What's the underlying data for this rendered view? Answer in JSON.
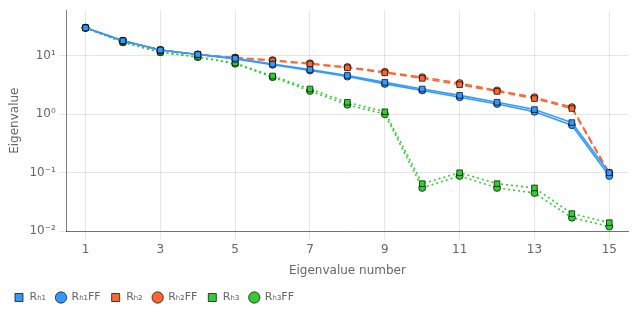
{
  "chart_data": {
    "type": "line",
    "xlabel": "Eigenvalue number",
    "ylabel": "Eigenvalue",
    "x": [
      1,
      2,
      3,
      4,
      5,
      6,
      7,
      8,
      9,
      10,
      11,
      12,
      13,
      14,
      15
    ],
    "series": [
      {
        "name": "Rₕ₁",
        "color": "#3399FF",
        "marker": "square",
        "line_style": "solid",
        "values": [
          30,
          18,
          12.5,
          10.5,
          9.0,
          7.2,
          5.8,
          4.6,
          3.5,
          2.7,
          2.1,
          1.6,
          1.2,
          0.72,
          0.1
        ]
      },
      {
        "name": "Rₕ₁FF",
        "color": "#3399FF",
        "marker": "circle",
        "line_style": "solid",
        "values": [
          30,
          18,
          12.5,
          10.5,
          8.8,
          7.0,
          5.6,
          4.4,
          3.3,
          2.55,
          1.95,
          1.5,
          1.1,
          0.65,
          0.088
        ]
      },
      {
        "name": "Rₕ₂",
        "color": "#FF6633",
        "marker": "square",
        "line_style": "dashed",
        "values": [
          30,
          18,
          12.5,
          10.5,
          9.2,
          8.2,
          7.2,
          6.2,
          5.1,
          4.1,
          3.2,
          2.45,
          1.85,
          1.25,
          0.095
        ]
      },
      {
        "name": "Rₕ₂FF",
        "color": "#FF6633",
        "marker": "circle",
        "line_style": "dashed",
        "values": [
          30,
          18,
          12.5,
          10.5,
          9.3,
          8.4,
          7.4,
          6.4,
          5.3,
          4.3,
          3.4,
          2.55,
          1.95,
          1.32,
          0.1
        ]
      },
      {
        "name": "Rₕ₃",
        "color": "#33CC33",
        "marker": "square",
        "line_style": "dotted",
        "values": [
          30,
          17,
          11.5,
          9.5,
          7.5,
          4.5,
          2.7,
          1.6,
          1.1,
          0.065,
          0.1,
          0.065,
          0.055,
          0.02,
          0.014
        ]
      },
      {
        "name": "Rₕ₃FF",
        "color": "#33CC33",
        "marker": "circle",
        "line_style": "dotted",
        "values": [
          30,
          17,
          11.5,
          9.5,
          7.3,
          4.3,
          2.5,
          1.45,
          1.0,
          0.055,
          0.088,
          0.055,
          0.045,
          0.017,
          0.012
        ]
      }
    ],
    "log": "y",
    "xlim": [
      0.5,
      15.5
    ],
    "xticks": [
      1,
      3,
      5,
      7,
      9,
      11,
      13,
      15
    ],
    "ylim": [
      0.01,
      60
    ],
    "yticks": [
      {
        "value": 0.01,
        "label": "10⁻²"
      },
      {
        "value": 0.1,
        "label": "10⁻¹"
      },
      {
        "value": 1,
        "label": "10⁰"
      },
      {
        "value": 10,
        "label": "10¹"
      }
    ],
    "grid": true,
    "legend": "lower left"
  }
}
